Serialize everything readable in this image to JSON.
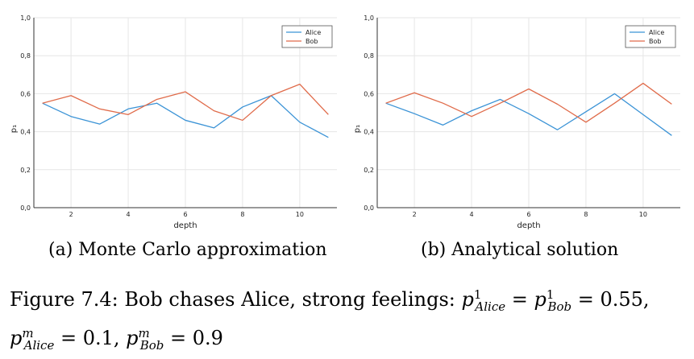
{
  "chart_data": [
    {
      "type": "line",
      "caption": "(a) Monte Carlo approximation",
      "xlabel": "depth",
      "ylabel": "p₁",
      "xlim": [
        0.7,
        11.3
      ],
      "ylim": [
        0,
        1
      ],
      "x_ticks": [
        2,
        4,
        6,
        8,
        10
      ],
      "y_ticks": [
        "0,0",
        "0,2",
        "0,4",
        "0,6",
        "0,8",
        "1,0"
      ],
      "grid": true,
      "legend_position": "top-right",
      "x": [
        1,
        2,
        3,
        4,
        5,
        6,
        7,
        8,
        9,
        10,
        11
      ],
      "series": [
        {
          "name": "Alice",
          "color": "#3b93d6",
          "values": [
            0.55,
            0.48,
            0.44,
            0.52,
            0.55,
            0.46,
            0.42,
            0.53,
            0.59,
            0.45,
            0.37
          ]
        },
        {
          "name": "Bob",
          "color": "#e06b4a",
          "values": [
            0.55,
            0.59,
            0.52,
            0.49,
            0.57,
            0.61,
            0.51,
            0.46,
            0.59,
            0.65,
            0.49
          ]
        }
      ]
    },
    {
      "type": "line",
      "caption": "(b) Analytical solution",
      "xlabel": "depth",
      "ylabel": "p₁",
      "xlim": [
        0.7,
        11.3
      ],
      "ylim": [
        0,
        1
      ],
      "x_ticks": [
        2,
        4,
        6,
        8,
        10
      ],
      "y_ticks": [
        "0,0",
        "0,2",
        "0,4",
        "0,6",
        "0,8",
        "1,0"
      ],
      "grid": true,
      "legend_position": "top-right",
      "x": [
        1,
        2,
        3,
        4,
        5,
        6,
        7,
        8,
        9,
        10,
        11
      ],
      "series": [
        {
          "name": "Alice",
          "color": "#3b93d6",
          "values": [
            0.55,
            0.495,
            0.435,
            0.51,
            0.57,
            0.495,
            0.41,
            0.505,
            0.6,
            0.49,
            0.38
          ]
        },
        {
          "name": "Bob",
          "color": "#e06b4a",
          "values": [
            0.55,
            0.605,
            0.55,
            0.48,
            0.55,
            0.625,
            0.545,
            0.45,
            0.55,
            0.655,
            0.545
          ]
        }
      ]
    }
  ],
  "figure_caption": {
    "prefix": "Figure 7.4: Bob chases Alice, strong feelings: ",
    "p_letter": "p",
    "sup_1": "1",
    "sup_m": "m",
    "sub_alice": "Alice",
    "sub_bob": "Bob",
    "eq": " = ",
    "val_initial": "0.55",
    "val_alice_m": "0.1",
    "val_bob_m": "0.9",
    "comma": ", "
  }
}
